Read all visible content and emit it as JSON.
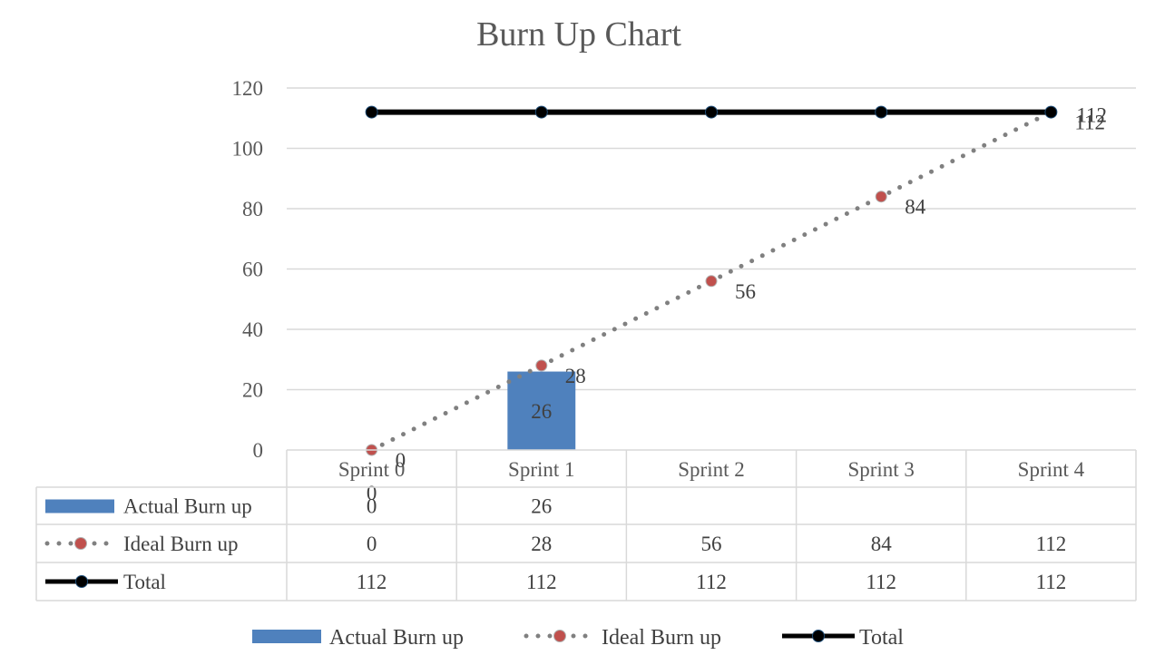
{
  "chart_data": {
    "type": "bar",
    "title": "Burn Up Chart",
    "categories": [
      "Sprint 0",
      "Sprint 1",
      "Sprint 2",
      "Sprint 3",
      "Sprint 4"
    ],
    "ylim": [
      0,
      120
    ],
    "yticks": [
      0,
      20,
      40,
      60,
      80,
      100,
      120
    ],
    "grid": true,
    "legend_position": "bottom",
    "series": [
      {
        "name": "Actual Burn up",
        "kind": "bar",
        "values": [
          0,
          26,
          null,
          null,
          null
        ],
        "color": "#4f81bd",
        "table": [
          "0",
          "26",
          "",
          "",
          ""
        ]
      },
      {
        "name": "Ideal Burn up",
        "kind": "line-dotted",
        "values": [
          0,
          28,
          56,
          84,
          112
        ],
        "color": "#808080",
        "marker_fill": "#c0504d",
        "table": [
          "0",
          "28",
          "56",
          "84",
          "112"
        ]
      },
      {
        "name": "Total",
        "kind": "line",
        "values": [
          112,
          112,
          112,
          112,
          112
        ],
        "color": "#000000",
        "marker_fill": "#000000",
        "table": [
          "112",
          "112",
          "112",
          "112",
          "112"
        ]
      }
    ]
  }
}
